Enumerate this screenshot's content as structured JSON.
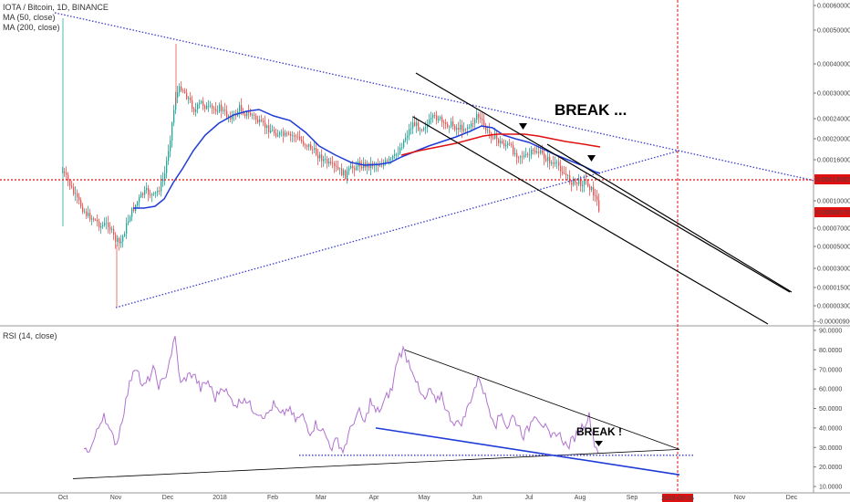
{
  "header": {
    "symbol_line": "IOTA / Bitcoin, 1D, BINANCE",
    "ma50_label": "MA (50, close)",
    "ma200_label": "MA (200, close)"
  },
  "rsi_panel": {
    "label": "RSI (14, close)"
  },
  "annotations": {
    "break_price": "BREAK ...",
    "break_rsi": "BREAK !"
  },
  "colors": {
    "bull": "#26a69a",
    "bear": "#ef5350",
    "ma50": "#1f3bd8",
    "ma200": "#e01010",
    "rsi": "#b072d0",
    "trendline_dotted": "#3a3acf",
    "horizontal_line": "#e01010",
    "label_bg": "#e01010",
    "rsi_support": "#1f3bd8"
  },
  "chart_data": [
    {
      "type": "candlestick",
      "title": "IOTA / Bitcoin, 1D, BINANCE",
      "y_axis_ticks": [
        "0.00060000",
        "0.00050000",
        "0.00040000",
        "0.00030000",
        "0.00024000",
        "0.00020000",
        "0.00016000",
        "0.00010000",
        "0.00007000",
        "0.00005000",
        "0.00003000",
        "0.00001500",
        "0.00000300",
        "-0.00000900"
      ],
      "horizontal_line_value": "0.00013062",
      "last_price": "0.00008572",
      "x_axis_labels": [
        "Oct",
        "Nov",
        "Dec",
        "2018",
        "Feb",
        "Mar",
        "Apr",
        "May",
        "Jun",
        "Jul",
        "Aug",
        "Sep",
        "Nov",
        "Dec"
      ],
      "vertical_marker_date": "2018-09-26",
      "series": [
        {
          "name": "MA (50, close)"
        },
        {
          "name": "MA (200, close)"
        }
      ]
    },
    {
      "type": "line",
      "title": "RSI (14, close)",
      "y_axis_ticks": [
        "90.0000",
        "80.0000",
        "70.0000",
        "60.0000",
        "50.0000",
        "40.0000",
        "30.0000",
        "20.0000",
        "10.0000"
      ],
      "ylim": [
        10,
        90
      ]
    }
  ]
}
